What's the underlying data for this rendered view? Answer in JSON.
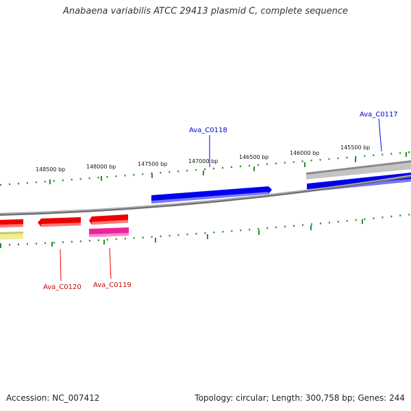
{
  "title": "Anabaena variabilis ATCC 29413 plasmid C, complete sequence",
  "footer": {
    "accession": "Accession: NC_007412",
    "summary": "Topology: circular; Length: 300,758 bp; Genes: 244"
  },
  "colors": {
    "backbone": "#808080",
    "ticks": "#2a8a2a",
    "forward_gene": "#0000ee",
    "reverse_gene": "#ee0000",
    "pink_gene": "#ee2299",
    "yellow_feature": "#eeee99",
    "grey_feature": "#b0b0b0"
  },
  "tick_labels": [
    "148500 bp",
    "148000 bp",
    "147500 bp",
    "147000 bp",
    "146500 bp",
    "146000 bp",
    "145500 bp"
  ],
  "genes": [
    {
      "name": "Ava_C0118",
      "strand": "forward",
      "color": "#0000ee"
    },
    {
      "name": "Ava_C0117",
      "strand": "forward",
      "color": "#0000ee"
    },
    {
      "name": "Ava_C0120",
      "strand": "reverse",
      "color": "#dd0000"
    },
    {
      "name": "Ava_C0119",
      "strand": "reverse",
      "color": "#dd0000"
    }
  ]
}
